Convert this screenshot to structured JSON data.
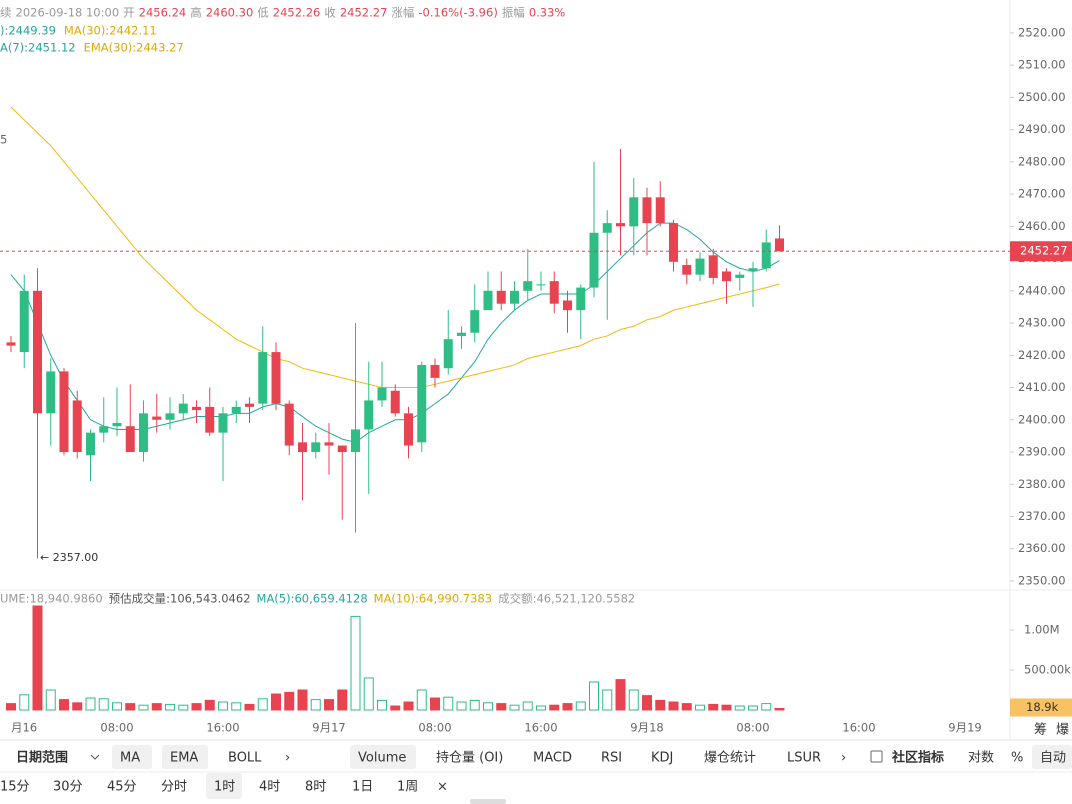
{
  "header": {
    "line1": [
      {
        "text": "续",
        "color": "#999"
      },
      {
        "text": "2026-09-18 10:00",
        "color": "#999"
      },
      {
        "text": "开",
        "color": "#999"
      },
      {
        "text": "2456.24",
        "color": "#e84350"
      },
      {
        "text": "高",
        "color": "#999"
      },
      {
        "text": "2460.30",
        "color": "#e84350"
      },
      {
        "text": "低",
        "color": "#999"
      },
      {
        "text": "2452.26",
        "color": "#e84350"
      },
      {
        "text": "收",
        "color": "#999"
      },
      {
        "text": "2452.27",
        "color": "#e84350"
      },
      {
        "text": "涨幅",
        "color": "#999"
      },
      {
        "text": "-0.16%(-3.96)",
        "color": "#e84350"
      },
      {
        "text": "振幅",
        "color": "#999"
      },
      {
        "text": "0.33%",
        "color": "#e84350"
      }
    ],
    "line2": [
      {
        "text": "):2449.39",
        "color": "#26a69a"
      },
      {
        "text": "MA(30):2442.11",
        "color": "#e0a800"
      }
    ],
    "line3": [
      {
        "text": "A(7):2451.12",
        "color": "#26a69a"
      },
      {
        "text": "EMA(30):2443.27",
        "color": "#e0a800"
      }
    ],
    "volume_line": [
      {
        "text": "UME:18,940.9860",
        "color": "#999"
      },
      {
        "text": "预估成交量:106,543.0462",
        "color": "#555"
      },
      {
        "text": "MA(5):60,659.4128",
        "color": "#26a69a"
      },
      {
        "text": "MA(10):64,990.7383",
        "color": "#e0a800"
      },
      {
        "text": "成交额:46,521,120.5582",
        "color": "#999"
      }
    ],
    "cut_label": "5",
    "low_annotation": "← 2357.00"
  },
  "chart_data": {
    "type": "candlestick",
    "up_color": "#2ebd85",
    "down_color": "#e84350",
    "open": [
      2424,
      2421,
      2440,
      2402,
      2415,
      2406,
      2389,
      2396,
      2398,
      2398,
      2390,
      2401,
      2400,
      2402,
      2404,
      2404,
      2396,
      2402,
      2405,
      2405,
      2421,
      2405,
      2393,
      2390,
      2393,
      2392,
      2390,
      2397,
      2406,
      2409,
      2402,
      2393,
      2417,
      2416,
      2426,
      2427,
      2434,
      2440,
      2436,
      2440,
      2442,
      2443,
      2437,
      2434,
      2441,
      2458,
      2461,
      2460,
      2469,
      2469,
      2461,
      2448,
      2445,
      2451,
      2446,
      2444,
      2446,
      2447,
      2456.24
    ],
    "high": [
      2426,
      2445,
      2447,
      2419,
      2416,
      2409,
      2397,
      2407,
      2410,
      2411,
      2406,
      2408,
      2407,
      2408,
      2406,
      2410,
      2404,
      2406,
      2407,
      2429,
      2424,
      2406,
      2399,
      2396,
      2399,
      2392,
      2430,
      2418,
      2418,
      2411,
      2404,
      2418,
      2419,
      2434,
      2429,
      2442,
      2446,
      2446,
      2443,
      2453,
      2446,
      2446,
      2440,
      2442,
      2480,
      2465,
      2484,
      2475,
      2472,
      2474,
      2462,
      2450,
      2452,
      2453,
      2447,
      2446,
      2449,
      2459,
      2460.3
    ],
    "low": [
      2421,
      2416,
      2357,
      2392,
      2389,
      2388,
      2381,
      2393,
      2395,
      2390,
      2387,
      2396,
      2397,
      2400,
      2399,
      2395,
      2381,
      2399,
      2399,
      2403,
      2403,
      2389,
      2375,
      2388,
      2383,
      2369,
      2365,
      2377,
      2404,
      2401,
      2388,
      2390,
      2410,
      2414,
      2422,
      2424,
      2435,
      2434,
      2434,
      2437,
      2440,
      2433,
      2427,
      2425,
      2438,
      2431,
      2451,
      2451,
      2451,
      2460,
      2446,
      2442,
      2443,
      2442,
      2436,
      2440,
      2435,
      2446,
      2452.26
    ],
    "close": [
      2423,
      2440,
      2402,
      2415,
      2390,
      2390,
      2396,
      2398,
      2399,
      2390,
      2402,
      2400,
      2402,
      2405,
      2403,
      2396,
      2402,
      2404,
      2404,
      2421,
      2405,
      2392,
      2390,
      2393,
      2392,
      2390,
      2397,
      2406,
      2410,
      2402,
      2392,
      2417,
      2413,
      2425,
      2427,
      2434,
      2440,
      2436,
      2440,
      2443,
      2442,
      2436,
      2434,
      2441,
      2458,
      2461,
      2460,
      2469,
      2461,
      2461,
      2449,
      2445,
      2450,
      2444,
      2443,
      2445,
      2447,
      2455,
      2452.27
    ],
    "ylim": [
      2347.2,
      2530.2
    ],
    "yticks": [
      {
        "value": 2350,
        "label": "2350.00"
      },
      {
        "value": 2360,
        "label": "2360.00"
      },
      {
        "value": 2370,
        "label": "2370.00"
      },
      {
        "value": 2380,
        "label": "2380.00"
      },
      {
        "value": 2390,
        "label": "2390.00"
      },
      {
        "value": 2400,
        "label": "2400.00"
      },
      {
        "value": 2410,
        "label": "2410.00"
      },
      {
        "value": 2420,
        "label": "2420.00"
      },
      {
        "value": 2430,
        "label": "2430.00"
      },
      {
        "value": 2440,
        "label": "2440.00"
      },
      {
        "value": 2450,
        "label": "2450.00"
      },
      {
        "value": 2460,
        "label": "2460.00"
      },
      {
        "value": 2470,
        "label": "2470.00"
      },
      {
        "value": 2480,
        "label": "2480.00"
      },
      {
        "value": 2490,
        "label": "2490.00"
      },
      {
        "value": 2500,
        "label": "2500.00"
      },
      {
        "value": 2510,
        "label": "2510.00"
      },
      {
        "value": 2520,
        "label": "2520.00"
      }
    ],
    "lines": [
      {
        "color": "#26a69a",
        "values": [
          2445,
          2440,
          2430,
          2420,
          2412,
          2406,
          2400,
          2398,
          2397,
          2397,
          2397,
          2398,
          2399,
          2400,
          2401,
          2401,
          2401,
          2402,
          2402,
          2404,
          2405,
          2404,
          2401,
          2398,
          2396,
          2394,
          2393,
          2396,
          2398,
          2400,
          2400,
          2402,
          2405,
          2408,
          2413,
          2418,
          2425,
          2430,
          2434,
          2437,
          2439,
          2439,
          2439,
          2439,
          2442,
          2446,
          2450,
          2454,
          2458,
          2461,
          2461,
          2459,
          2456,
          2452,
          2449,
          2447,
          2446,
          2447,
          2449.39
        ]
      },
      {
        "color": "#f0b90b",
        "values": [
          2497,
          2493,
          2489,
          2485,
          2480,
          2475,
          2470,
          2465,
          2460,
          2455,
          2450,
          2446,
          2442,
          2438,
          2434,
          2431,
          2428,
          2425,
          2423,
          2421,
          2419,
          2418,
          2416,
          2415,
          2414,
          2413,
          2412,
          2411,
          2410,
          2410,
          2410,
          2410,
          2411,
          2412,
          2413,
          2414,
          2415,
          2416,
          2417,
          2419,
          2420,
          2421,
          2422,
          2423,
          2425,
          2426,
          2428,
          2429,
          2431,
          2432,
          2434,
          2435,
          2436,
          2437,
          2438,
          2439,
          2440,
          2441,
          2442.11
        ]
      }
    ],
    "last_price": {
      "value": 2452.27,
      "label": "2452.27"
    },
    "volume": {
      "values": [
        80000,
        190000,
        1300000,
        250000,
        130000,
        90000,
        150000,
        140000,
        90000,
        80000,
        60000,
        80000,
        70000,
        60000,
        80000,
        120000,
        100000,
        90000,
        70000,
        140000,
        200000,
        220000,
        250000,
        130000,
        130000,
        250000,
        1170000,
        400000,
        120000,
        50000,
        100000,
        250000,
        150000,
        160000,
        100000,
        120000,
        90000,
        80000,
        60000,
        100000,
        50000,
        60000,
        80000,
        100000,
        350000,
        250000,
        380000,
        250000,
        180000,
        120000,
        100000,
        80000,
        60000,
        70000,
        60000,
        50000,
        50000,
        80000,
        18940.986
      ],
      "ylim": [
        0,
        1250000
      ],
      "yticks": [
        {
          "value": 1000000,
          "label": "1.00M"
        },
        {
          "value": 500000,
          "label": "500.00k"
        }
      ],
      "last": {
        "value": 18940.986,
        "label": "18.9k"
      }
    },
    "xticks": [
      "月16",
      "08:00",
      "16:00",
      "9月17",
      "08:00",
      "16:00",
      "9月18",
      "08:00",
      "16:00",
      "9月19"
    ]
  },
  "corner": [
    "筹",
    "爆"
  ],
  "toolbar1": [
    "日期范围",
    "MA",
    "EMA",
    "BOLL",
    "›",
    "Volume",
    "持仓量 (OI)",
    "MACD",
    "RSI",
    "KDJ",
    "爆仓统计",
    "LSUR",
    "›",
    "社区指标",
    "对数",
    "%",
    "自动"
  ],
  "toolbar2": [
    "15分",
    "30分",
    "45分",
    "分时",
    "1时",
    "4时",
    "8时",
    "1日",
    "1周",
    "×"
  ]
}
